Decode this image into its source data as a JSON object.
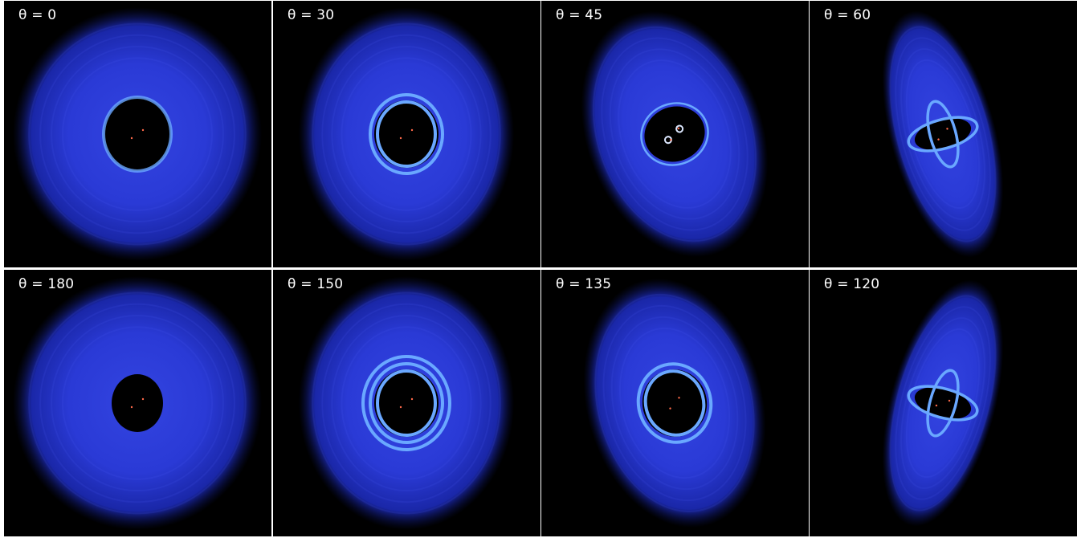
{
  "panels": [
    {
      "label": "θ = 0",
      "tilt": 0,
      "ring": "hole",
      "rot": 0
    },
    {
      "label": "θ = 30",
      "tilt": 30,
      "ring": "double",
      "rot": 0
    },
    {
      "label": "θ = 45",
      "tilt": 45,
      "ring": "spiral",
      "rot": -20
    },
    {
      "label": "θ = 60",
      "tilt": 60,
      "ring": "crossed",
      "rot": -15
    },
    {
      "label": "θ = 180",
      "tilt": 180,
      "ring": "smallhole",
      "rot": 0
    },
    {
      "label": "θ = 150",
      "tilt": 150,
      "ring": "triple",
      "rot": 0
    },
    {
      "label": "θ = 135",
      "tilt": 135,
      "ring": "double",
      "rot": -15
    },
    {
      "label": "θ = 120",
      "tilt": 120,
      "ring": "crossed",
      "rot": 15
    }
  ],
  "colors": {
    "disk_core": "#2a3ad6",
    "disk_edge": "#0a1050",
    "ring": "#6aa8ff",
    "background": "#000000",
    "star": "#ff6a4a"
  }
}
